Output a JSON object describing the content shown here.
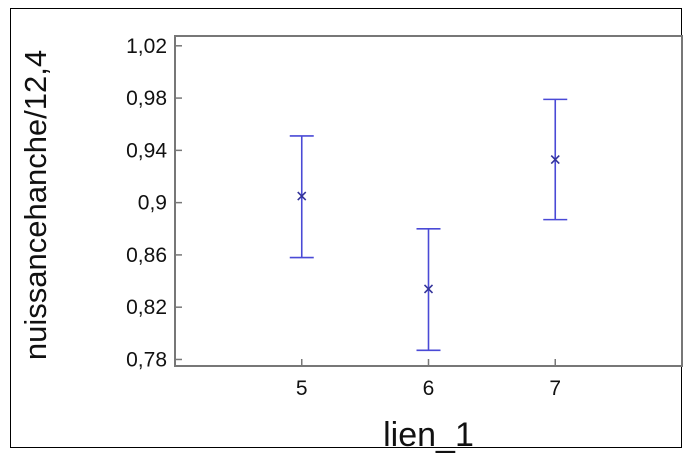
{
  "chart_data": {
    "type": "scatter",
    "subtype": "means-with-error-bars",
    "xlabel": "lien_1",
    "ylabel": "nuissancehanche/12,4",
    "x_tick_labels": [
      "5",
      "6",
      "7"
    ],
    "y_tick_labels": [
      "1,02",
      "0,98",
      "0,94",
      "0,9",
      "0,86",
      "0,82",
      "0,78"
    ],
    "ylim": [
      0.775,
      1.0275
    ],
    "xlim": [
      4,
      8
    ],
    "grid": false,
    "legend": "none",
    "series": [
      {
        "x": [
          5,
          6,
          7
        ],
        "mean": [
          0.905,
          0.834,
          0.933
        ],
        "lower": [
          0.858,
          0.787,
          0.887
        ],
        "upper": [
          0.951,
          0.88,
          0.979
        ]
      }
    ],
    "colors": {
      "series": "#4a4ad6",
      "axis": "#777777",
      "text": "#111111"
    }
  }
}
